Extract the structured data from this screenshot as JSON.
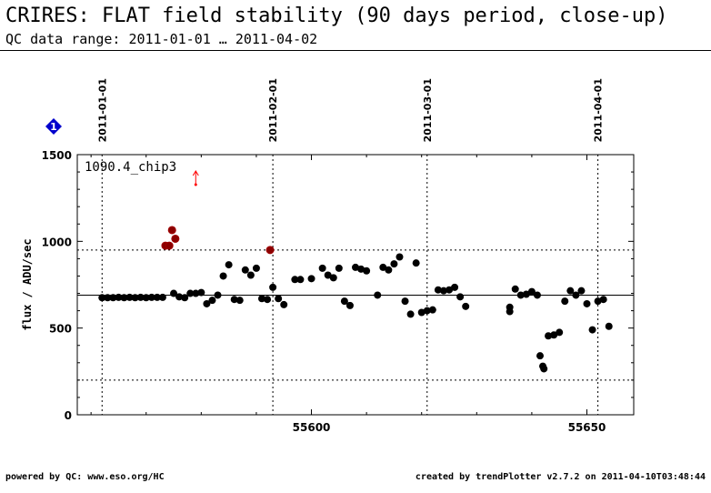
{
  "header": {
    "title": "CRIRES: FLAT field stability (90 days period, close-up)",
    "subtitle": "QC data range: 2011-01-01 … 2011-04-02"
  },
  "footer": {
    "left": "powered by QC: www.eso.org/HC",
    "right": "created by trendPlotter v2.7.2 on 2011-04-10T03:48:44"
  },
  "info_badge": {
    "icon": "info-diamond-icon",
    "label": "1",
    "color": "#0000cc"
  },
  "chart_data": {
    "type": "scatter",
    "panel_label": "1090.4_chip3",
    "ylabel": "flux / ADU/sec",
    "xlabel": "",
    "xlim": [
      55557.5,
      55658.5
    ],
    "ylim": [
      0,
      1500
    ],
    "x_ticks": [
      55600,
      55650
    ],
    "y_ticks": [
      0,
      500,
      1000,
      1500
    ],
    "date_markers": [
      {
        "label": "2011-01-01",
        "x": 55562
      },
      {
        "label": "2011-02-01",
        "x": 55593
      },
      {
        "label": "2011-03-01",
        "x": 55621
      },
      {
        "label": "2011-04-01",
        "x": 55652
      }
    ],
    "reference_lines": {
      "mean": 690,
      "upper": 950,
      "lower": 200
    },
    "colors": {
      "normal": "#000000",
      "outlier": "#8b0000",
      "offscale": "#ff0000"
    },
    "offscale_marker": {
      "x": 55579,
      "direction": "up"
    },
    "series": [
      {
        "name": "",
        "points": [
          [
            55562,
            675
          ],
          [
            55563,
            675
          ],
          [
            55564,
            675
          ],
          [
            55565,
            677
          ],
          [
            55566,
            675
          ],
          [
            55567,
            677
          ],
          [
            55568,
            675
          ],
          [
            55569,
            677
          ],
          [
            55570,
            675
          ],
          [
            55571,
            677
          ],
          [
            55572,
            677
          ],
          [
            55573,
            677
          ],
          [
            55575,
            700
          ],
          [
            55576,
            680
          ],
          [
            55577,
            675
          ],
          [
            55578,
            700
          ],
          [
            55579,
            700
          ],
          [
            55580,
            705
          ],
          [
            55581,
            640
          ],
          [
            55582,
            660
          ],
          [
            55583,
            690
          ],
          [
            55584,
            800
          ],
          [
            55585,
            865
          ],
          [
            55586,
            665
          ],
          [
            55587,
            660
          ],
          [
            55588,
            835
          ],
          [
            55589,
            805
          ],
          [
            55590,
            845
          ],
          [
            55591,
            670
          ],
          [
            55592,
            665
          ],
          [
            55593,
            735
          ],
          [
            55594,
            670
          ],
          [
            55595,
            635
          ],
          [
            55597,
            780
          ],
          [
            55598,
            780
          ],
          [
            55600,
            785
          ],
          [
            55602,
            845
          ],
          [
            55603,
            805
          ],
          [
            55604,
            790
          ],
          [
            55605,
            845
          ],
          [
            55606,
            655
          ],
          [
            55607,
            630
          ],
          [
            55608,
            850
          ],
          [
            55609,
            840
          ],
          [
            55610,
            830
          ],
          [
            55612,
            690
          ],
          [
            55613,
            850
          ],
          [
            55614,
            835
          ],
          [
            55615,
            870
          ],
          [
            55616,
            910
          ],
          [
            55617,
            655
          ],
          [
            55618,
            580
          ],
          [
            55619,
            875
          ],
          [
            55620,
            590
          ],
          [
            55621,
            600
          ],
          [
            55622,
            605
          ],
          [
            55623,
            720
          ],
          [
            55624,
            715
          ],
          [
            55625,
            720
          ],
          [
            55626,
            735
          ],
          [
            55627,
            680
          ],
          [
            55628,
            625
          ],
          [
            55636,
            620
          ],
          [
            55636,
            595
          ],
          [
            55637,
            725
          ],
          [
            55638,
            690
          ],
          [
            55639,
            695
          ],
          [
            55640,
            710
          ],
          [
            55641,
            690
          ],
          [
            55641.5,
            340
          ],
          [
            55642,
            280
          ],
          [
            55642.2,
            265
          ],
          [
            55643,
            455
          ],
          [
            55644,
            460
          ],
          [
            55645,
            475
          ],
          [
            55646,
            655
          ],
          [
            55647,
            715
          ],
          [
            55648,
            690
          ],
          [
            55649,
            715
          ],
          [
            55650,
            640
          ],
          [
            55651,
            490
          ],
          [
            55652,
            655
          ],
          [
            55653,
            665
          ],
          [
            55654,
            510
          ]
        ]
      },
      {
        "name": "",
        "outlier": true,
        "points": [
          [
            55573.5,
            975
          ],
          [
            55574.2,
            975
          ],
          [
            55574.7,
            1065
          ],
          [
            55575.3,
            1015
          ],
          [
            55592.5,
            950
          ]
        ]
      }
    ]
  }
}
